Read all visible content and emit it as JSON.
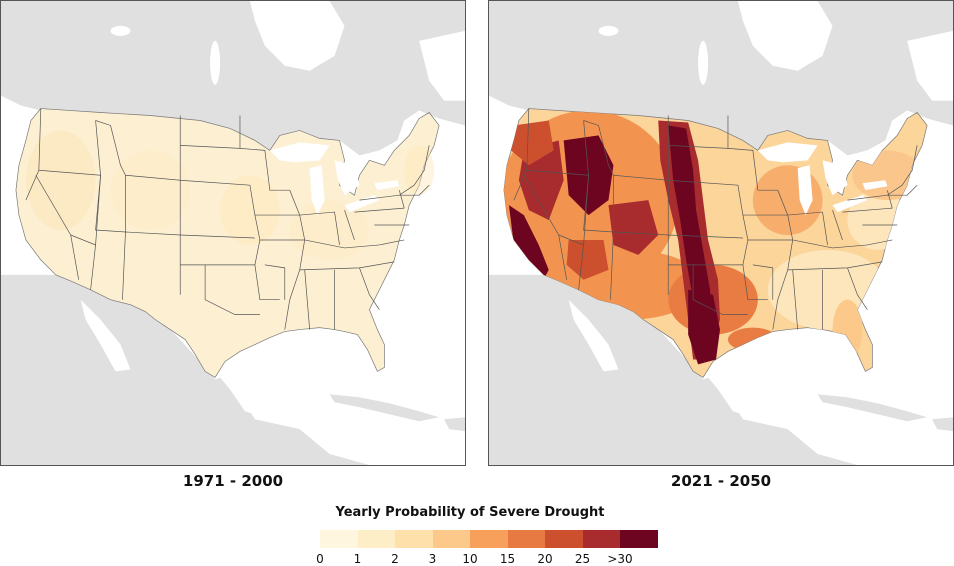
{
  "maps": [
    {
      "period": "1971 - 2000",
      "scenario": "historical"
    },
    {
      "period": "2021 - 2050",
      "scenario": "projected"
    }
  ],
  "legend": {
    "title": "Yearly Probability of Severe Drought",
    "ticks": [
      "0",
      "1",
      "2",
      "3",
      "10",
      "15",
      "20",
      "25",
      ">30"
    ],
    "colors": [
      "#fff6df",
      "#feeec8",
      "#fde0aa",
      "#fcc98a",
      "#f6a05c",
      "#e77a42",
      "#cc4f2e",
      "#a82c2e",
      "#6d0520"
    ]
  },
  "colors": {
    "land_background": "#e0e0e0",
    "water": "#ffffff",
    "border": "#555555"
  }
}
